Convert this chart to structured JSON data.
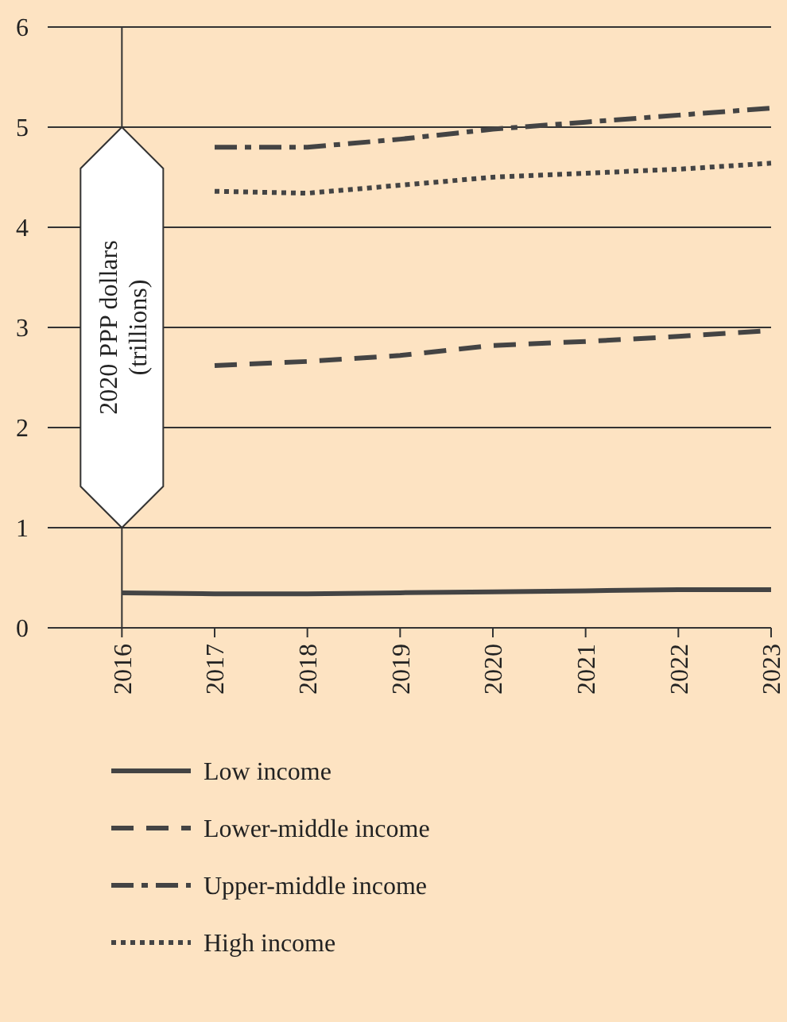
{
  "chart_data": {
    "type": "line",
    "ylabel": "2020 PPP dollars (trillions)",
    "x": [
      2016,
      2017,
      2018,
      2019,
      2020,
      2021,
      2022,
      2023
    ],
    "xlim": [
      2015.2,
      2023
    ],
    "xticks": [
      2016,
      2017,
      2018,
      2019,
      2020,
      2021,
      2022,
      2023
    ],
    "ylim": [
      0,
      6
    ],
    "yticks": [
      0,
      1,
      2,
      3,
      4,
      5,
      6
    ],
    "grid": "y",
    "ref_lines": [
      {
        "axis": "x",
        "value": 2016
      }
    ],
    "legend": "bottom",
    "series": [
      {
        "name": "Low income",
        "color": "#444444",
        "line_style": "solid",
        "values": [
          0.35,
          0.34,
          0.34,
          0.35,
          0.36,
          0.37,
          0.38,
          0.38
        ]
      },
      {
        "name": "Lower-middle income",
        "color": "#444444",
        "line_style": "dashed",
        "values": [
          null,
          2.62,
          2.66,
          2.72,
          2.82,
          2.86,
          2.91,
          2.97
        ]
      },
      {
        "name": "Upper-middle income",
        "color": "#444444",
        "line_style": "dashdot",
        "values": [
          null,
          4.8,
          4.8,
          4.88,
          4.98,
          5.05,
          5.12,
          5.19
        ]
      },
      {
        "name": "High income",
        "color": "#444444",
        "line_style": "dotted",
        "values": [
          null,
          4.36,
          4.34,
          4.42,
          4.5,
          4.54,
          4.58,
          4.64
        ]
      }
    ]
  }
}
